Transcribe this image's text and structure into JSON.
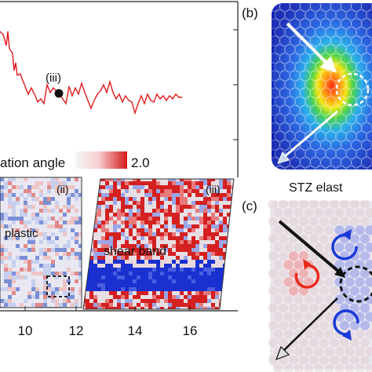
{
  "plot": {
    "marker_label": "(iii)",
    "line_color": "#e41a1c",
    "x_ticks": [
      "10",
      "12",
      "14",
      "16"
    ],
    "x": [
      7.6,
      8.0,
      8.4,
      8.8,
      9.2,
      9.6,
      10.0,
      10.4,
      10.8,
      11.2,
      11.4,
      11.6,
      12.0,
      12.4,
      12.8,
      13.2,
      13.6,
      14.0,
      14.4,
      14.8,
      15.2,
      15.6
    ],
    "y": [
      0.82,
      0.66,
      0.55,
      0.49,
      0.45,
      0.42,
      0.4,
      0.36,
      0.33,
      0.31,
      0.3,
      0.29,
      0.31,
      0.3,
      0.28,
      0.29,
      0.27,
      0.28,
      0.26,
      0.27,
      0.28,
      0.28
    ]
  },
  "colorbar": {
    "label": "ation angle",
    "max_label": "2.0"
  },
  "panels": {
    "ii": {
      "tag": "(ii)",
      "text": "plastic"
    },
    "iii": {
      "tag": "(iii)",
      "text": "shear band"
    },
    "b": {
      "tag": "(b)",
      "caption": "STZ elast"
    },
    "c": {
      "tag": "(c)"
    }
  }
}
